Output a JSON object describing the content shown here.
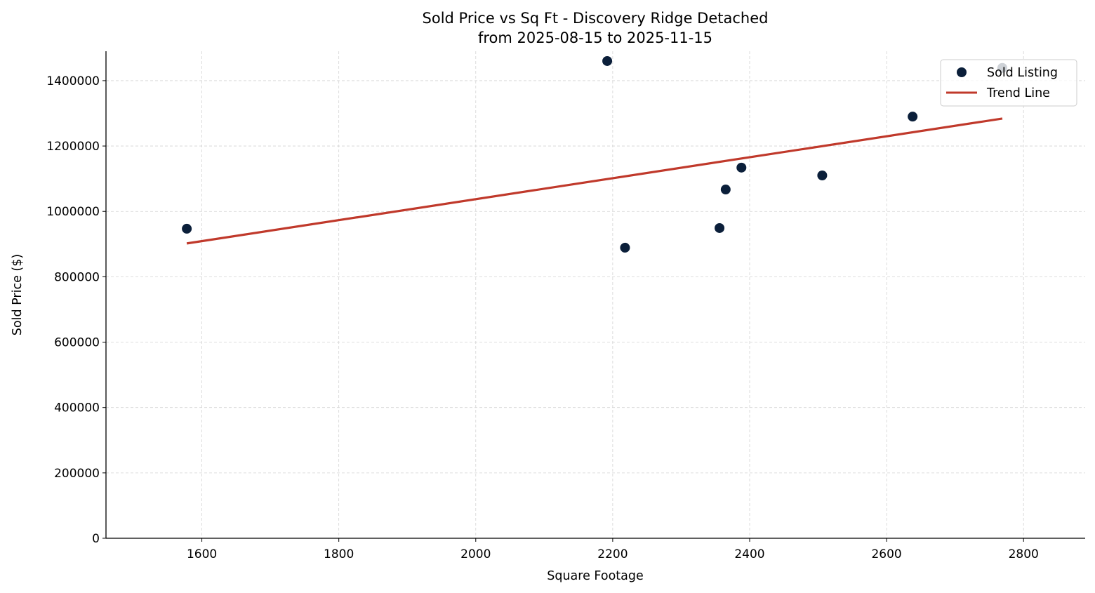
{
  "chart_data": {
    "type": "scatter",
    "title": "Sold Price vs Sq Ft - Discovery Ridge Detached",
    "subtitle": "from 2025-08-15 to 2025-11-15",
    "xlabel": "Square Footage",
    "ylabel": "Sold Price ($)",
    "xlim": [
      1460,
      2890
    ],
    "ylim": [
      0,
      1490000
    ],
    "xticks": [
      1600,
      1800,
      2000,
      2200,
      2400,
      2600,
      2800
    ],
    "yticks": [
      0,
      200000,
      400000,
      600000,
      800000,
      1000000,
      1200000,
      1400000
    ],
    "grid": true,
    "legend_position": "top-right",
    "series": [
      {
        "name": "Sold Listing",
        "kind": "scatter",
        "color": "#0b1f3a",
        "x": [
          1578,
          2192,
          2218,
          2356,
          2365,
          2388,
          2506,
          2638,
          2769
        ],
        "y": [
          947000,
          1460000,
          889000,
          949000,
          1067000,
          1134000,
          1110000,
          1290000,
          1439000
        ]
      },
      {
        "name": "Trend Line",
        "kind": "line",
        "color": "#c0392b",
        "x": [
          1578,
          2769
        ],
        "y": [
          902000,
          1284000
        ]
      }
    ]
  }
}
